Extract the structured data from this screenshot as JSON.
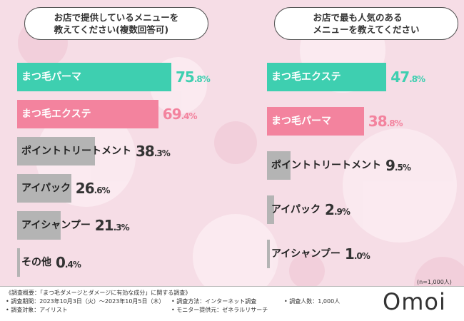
{
  "colors": {
    "teal": "#3ecfb0",
    "pink": "#f3839e",
    "gray": "#b4b4b4",
    "background": "#f6dde6"
  },
  "chart_data": [
    {
      "type": "bar",
      "orientation": "horizontal",
      "title": "お店で提供しているメニューを\n教えてください(複数回答可)",
      "categories": [
        "まつ毛パーマ",
        "まつ毛エクステ",
        "ポイントトリートメント",
        "アイパック",
        "アイシャンプー",
        "その他"
      ],
      "values": [
        75.8,
        69.4,
        38.3,
        26.6,
        21.3,
        0.4
      ],
      "labels": [
        "75.8%",
        "69.4%",
        "38.3%",
        "26.6%",
        "21.3%",
        "0.4%"
      ],
      "unit": "%",
      "highlight": [
        "teal",
        "pink",
        "gray",
        "gray",
        "gray",
        "gray"
      ]
    },
    {
      "type": "bar",
      "orientation": "horizontal",
      "title": "お店で最も人気のある\nメニューを教えてください",
      "categories": [
        "まつ毛エクステ",
        "まつ毛パーマ",
        "ポイントトリートメント",
        "アイパック",
        "アイシャンプー"
      ],
      "values": [
        47.8,
        38.8,
        9.5,
        2.9,
        1.0
      ],
      "labels": [
        "47.8%",
        "38.8%",
        "9.5%",
        "2.9%",
        "1.0%"
      ],
      "unit": "%",
      "highlight": [
        "teal",
        "pink",
        "gray",
        "gray",
        "gray"
      ]
    }
  ],
  "sample_note": "(n=1,000人)",
  "footer": {
    "line1": "《調査概要：「まつ毛ダメージとダメージに有効な成分」に関する調査》",
    "period": "• 調査期間：2023年10月3日（火）～2023年10月5日（木）",
    "method": "• 調査方法：インターネット調査",
    "count": "• 調査人数：1,000人",
    "target": "• 調査対象：アイリスト",
    "provider": "• モニター提供元：ゼネラルリサーチ"
  },
  "logo": "Omoi"
}
